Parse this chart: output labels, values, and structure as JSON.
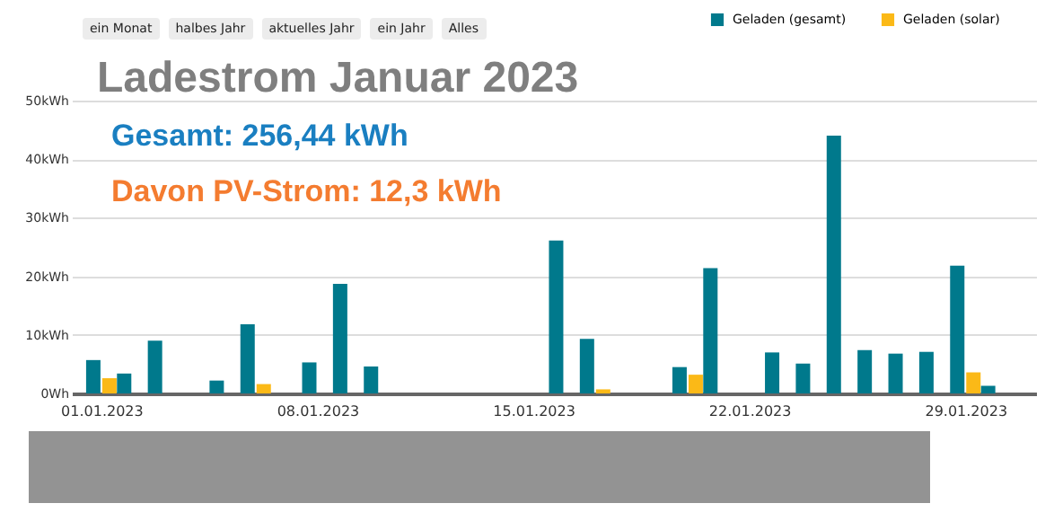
{
  "chart_data": {
    "type": "bar",
    "title": "Ladestrom Januar 2023",
    "annotations": [
      "Gesamt: 256,44 kWh",
      "Davon PV-Strom: 12,3 kWh",
      "ein Monat",
      "halbes Jahr",
      "aktuelles Jahr",
      "ein Jahr",
      "Alles"
    ],
    "x": [
      "2023-01-01",
      "2023-01-02",
      "2023-01-03",
      "2023-01-04",
      "2023-01-05",
      "2023-01-06",
      "2023-01-07",
      "2023-01-08",
      "2023-01-09",
      "2023-01-10",
      "2023-01-11",
      "2023-01-12",
      "2023-01-13",
      "2023-01-14",
      "2023-01-15",
      "2023-01-16",
      "2023-01-17",
      "2023-01-18",
      "2023-01-19",
      "2023-01-20",
      "2023-01-21",
      "2023-01-22",
      "2023-01-23",
      "2023-01-24",
      "2023-01-25",
      "2023-01-26",
      "2023-01-27",
      "2023-01-28",
      "2023-01-29",
      "2023-01-30"
    ],
    "series": [
      {
        "name": "Geladen (gesamt)",
        "color": "#00798c",
        "values": [
          5.7,
          3.4,
          9.0,
          0,
          2.2,
          11.8,
          0,
          5.3,
          18.7,
          4.6,
          0,
          0,
          0,
          0,
          0,
          26.1,
          9.3,
          0,
          0,
          4.5,
          21.4,
          0,
          7.0,
          5.1,
          44.0,
          7.4,
          6.8,
          7.1,
          21.8,
          1.3
        ]
      },
      {
        "name": "Geladen (solar)",
        "color": "#fbb917",
        "values": [
          2.6,
          0,
          0,
          0,
          0,
          1.6,
          0,
          0,
          0,
          0,
          0,
          0,
          0,
          0,
          0,
          0,
          0.7,
          0,
          0,
          3.2,
          0,
          0,
          0,
          0,
          0,
          0,
          0,
          0,
          3.6,
          0
        ]
      }
    ],
    "xlim": [
      "2022-12-31T08:00",
      "2023-01-31T00:00"
    ],
    "xticks": [
      {
        "value": "2023-01-01",
        "label": "01.01.2023"
      },
      {
        "value": "2023-01-08",
        "label": "08.01.2023"
      },
      {
        "value": "2023-01-15",
        "label": "15.01.2023"
      },
      {
        "value": "2023-01-22",
        "label": "22.01.2023"
      },
      {
        "value": "2023-01-29",
        "label": "29.01.2023"
      }
    ],
    "ylim": [
      0,
      50
    ],
    "yticks": [
      {
        "value": 0,
        "label": "0Wh"
      },
      {
        "value": 10,
        "label": "10kWh"
      },
      {
        "value": 20,
        "label": "20kWh"
      },
      {
        "value": 30,
        "label": "30kWh"
      },
      {
        "value": 40,
        "label": "40kWh"
      },
      {
        "value": 50,
        "label": "50kWh"
      }
    ],
    "grid": "y",
    "legend": "top right"
  }
}
